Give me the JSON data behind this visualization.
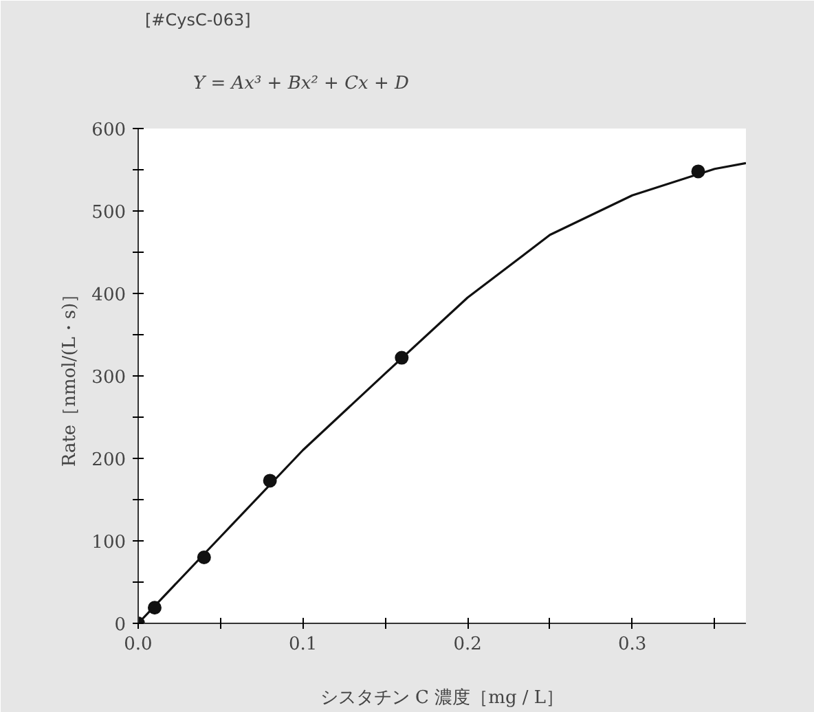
{
  "chart_data": {
    "type": "scatter",
    "title": "[#CysC-063]",
    "subtitle": "Y = Ax³ + Bx² + Cx + D",
    "xlabel": "シスタチン C 濃度［mg / L］",
    "ylabel": "Rate［nmol/(L・s)］",
    "x": [
      0,
      0.01,
      0.04,
      0.08,
      0.16,
      0.34
    ],
    "series": [
      {
        "color": "#111111",
        "marker": "circle",
        "values": [
          0,
          19,
          80,
          173,
          322,
          548
        ]
      },
      {
        "type": "line",
        "color": "#111111",
        "line_style": "solid",
        "marker": "none",
        "x": [
          0,
          0.05,
          0.1,
          0.15,
          0.2,
          0.25,
          0.3,
          0.35,
          0.369
        ],
        "values": [
          0,
          105,
          210,
          303,
          395,
          471,
          519,
          551,
          558
        ]
      }
    ],
    "xlim": [
      0,
      0.369
    ],
    "ylim": [
      0,
      600
    ],
    "xticks": [
      {
        "value": 0,
        "label": "0.0"
      },
      {
        "value": 0.05,
        "label": null
      },
      0.1,
      {
        "value": 0.15,
        "label": null
      },
      0.2,
      {
        "value": 0.25,
        "label": null
      },
      0.3,
      {
        "value": 0.35,
        "label": null
      }
    ],
    "yticks": [
      0,
      {
        "value": 50,
        "label": null
      },
      100,
      {
        "value": 150,
        "label": null
      },
      200,
      {
        "value": 250,
        "label": null
      },
      300,
      {
        "value": 350,
        "label": null
      },
      400,
      {
        "value": 450,
        "label": null
      },
      500,
      {
        "value": 550,
        "label": null
      },
      600
    ],
    "grid": false
  }
}
